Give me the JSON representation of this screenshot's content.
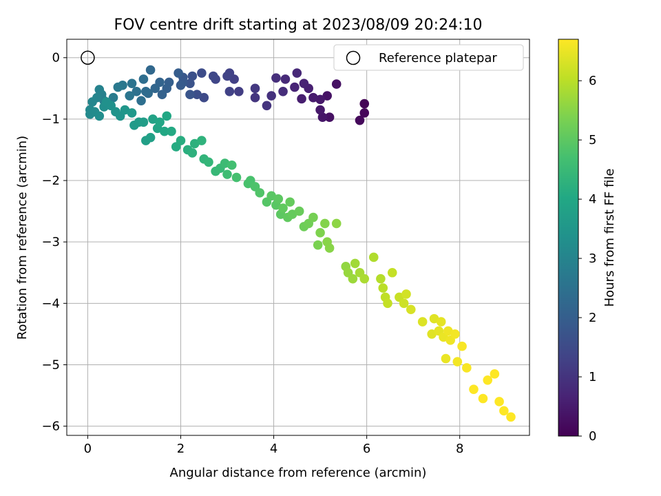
{
  "chart_data": {
    "type": "scatter",
    "title": "FOV centre drift starting at 2023/08/09 20:24:10",
    "xlabel": "Angular distance from reference (arcmin)",
    "ylabel": "Rotation from reference (arcmin)",
    "xlim": [
      -0.45,
      9.5
    ],
    "ylim": [
      -6.15,
      0.3
    ],
    "xticks": [
      "0",
      "2",
      "4",
      "6",
      "8"
    ],
    "yticks": [
      "0",
      "−1",
      "−2",
      "−3",
      "−4",
      "−5",
      "−6"
    ],
    "grid": true,
    "legend": {
      "placement": "upper right",
      "entries": [
        "Reference platepar"
      ]
    },
    "reference_point": {
      "x": 0.0,
      "y": 0.0
    },
    "colorbar": {
      "label": "Hours from first FF file",
      "range": [
        0,
        6.7
      ],
      "ticks": [
        "0",
        "1",
        "2",
        "3",
        "4",
        "5",
        "6"
      ],
      "colormap": "viridis"
    },
    "series": [
      {
        "points": [
          [
            5.95,
            -0.75,
            0.05
          ],
          [
            5.95,
            -0.9,
            0.1
          ],
          [
            5.85,
            -1.02,
            0.15
          ],
          [
            5.35,
            -0.43,
            0.3
          ],
          [
            5.2,
            -0.97,
            0.3
          ],
          [
            5.15,
            -0.62,
            0.35
          ],
          [
            5.05,
            -0.97,
            0.4
          ],
          [
            5.0,
            -0.85,
            0.45
          ],
          [
            5.0,
            -0.68,
            0.45
          ],
          [
            4.85,
            -0.65,
            0.5
          ],
          [
            4.6,
            -0.67,
            0.55
          ],
          [
            4.75,
            -0.5,
            0.6
          ],
          [
            4.65,
            -0.42,
            0.65
          ],
          [
            4.45,
            -0.48,
            0.7
          ],
          [
            4.5,
            -0.25,
            0.75
          ],
          [
            4.25,
            -0.35,
            0.8
          ],
          [
            4.2,
            -0.55,
            0.85
          ],
          [
            4.05,
            -0.33,
            0.9
          ],
          [
            3.95,
            -0.62,
            0.95
          ],
          [
            3.85,
            -0.78,
            1.0
          ],
          [
            3.6,
            -0.65,
            1.05
          ],
          [
            3.6,
            -0.5,
            1.1
          ],
          [
            3.25,
            -0.55,
            1.2
          ],
          [
            3.15,
            -0.35,
            1.25
          ],
          [
            3.05,
            -0.25,
            1.3
          ],
          [
            3.05,
            -0.55,
            1.3
          ],
          [
            3.0,
            -0.3,
            1.35
          ],
          [
            2.75,
            -0.35,
            1.4
          ],
          [
            2.7,
            -0.3,
            1.45
          ],
          [
            2.5,
            -0.65,
            1.5
          ],
          [
            2.45,
            -0.25,
            1.55
          ],
          [
            2.35,
            -0.6,
            1.6
          ],
          [
            2.25,
            -0.3,
            1.65
          ],
          [
            2.2,
            -0.42,
            1.7
          ],
          [
            2.2,
            -0.6,
            1.75
          ],
          [
            2.05,
            -0.32,
            1.8
          ],
          [
            2.05,
            -0.4,
            1.85
          ],
          [
            2.0,
            -0.45,
            1.9
          ],
          [
            1.95,
            -0.25,
            1.95
          ],
          [
            1.75,
            -0.4,
            2.0
          ],
          [
            1.7,
            -0.5,
            2.05
          ],
          [
            1.6,
            -0.6,
            2.1
          ],
          [
            1.55,
            -0.4,
            2.15
          ],
          [
            1.45,
            -0.5,
            2.2
          ],
          [
            1.35,
            -0.2,
            2.25
          ],
          [
            1.3,
            -0.58,
            2.3
          ],
          [
            1.25,
            -0.55,
            2.35
          ],
          [
            1.2,
            -0.35,
            2.4
          ],
          [
            1.15,
            -0.7,
            2.45
          ],
          [
            1.05,
            -0.55,
            2.5
          ],
          [
            0.95,
            -0.42,
            2.55
          ],
          [
            0.9,
            -0.62,
            2.6
          ],
          [
            0.75,
            -0.45,
            2.65
          ],
          [
            0.65,
            -0.48,
            2.7
          ],
          [
            0.55,
            -0.65,
            2.75
          ],
          [
            0.45,
            -0.75,
            2.8
          ],
          [
            0.35,
            -0.7,
            2.85
          ],
          [
            0.3,
            -0.6,
            2.9
          ],
          [
            0.25,
            -0.52,
            2.95
          ],
          [
            0.2,
            -0.65,
            3.0
          ],
          [
            0.1,
            -0.72,
            3.05
          ],
          [
            0.05,
            -0.85,
            3.1
          ],
          [
            0.05,
            -0.92,
            3.15
          ],
          [
            0.15,
            -0.88,
            3.2
          ],
          [
            0.25,
            -0.95,
            3.25
          ],
          [
            0.35,
            -0.8,
            3.3
          ],
          [
            0.4,
            -0.72,
            3.35
          ],
          [
            0.5,
            -0.78,
            3.35
          ],
          [
            0.6,
            -0.88,
            3.4
          ],
          [
            0.7,
            -0.95,
            3.45
          ],
          [
            0.8,
            -0.85,
            3.5
          ],
          [
            0.95,
            -0.9,
            3.55
          ],
          [
            1.0,
            -1.1,
            3.6
          ],
          [
            1.1,
            -1.05,
            3.65
          ],
          [
            1.2,
            -1.05,
            3.7
          ],
          [
            1.25,
            -1.35,
            3.75
          ],
          [
            1.35,
            -1.3,
            3.8
          ],
          [
            1.4,
            -1.0,
            3.85
          ],
          [
            1.5,
            -1.15,
            3.9
          ],
          [
            1.55,
            -1.05,
            3.95
          ],
          [
            1.65,
            -1.2,
            4.0
          ],
          [
            1.7,
            -0.95,
            4.0
          ],
          [
            1.8,
            -1.2,
            4.05
          ],
          [
            1.9,
            -1.45,
            4.1
          ],
          [
            2.0,
            -1.35,
            4.15
          ],
          [
            2.15,
            -1.5,
            4.2
          ],
          [
            2.25,
            -1.55,
            4.25
          ],
          [
            2.3,
            -1.4,
            4.25
          ],
          [
            2.45,
            -1.35,
            4.3
          ],
          [
            2.5,
            -1.65,
            4.35
          ],
          [
            2.6,
            -1.7,
            4.4
          ],
          [
            2.75,
            -1.85,
            4.45
          ],
          [
            2.85,
            -1.8,
            4.5
          ],
          [
            2.95,
            -1.72,
            4.55
          ],
          [
            3.0,
            -1.9,
            4.6
          ],
          [
            3.1,
            -1.75,
            4.65
          ],
          [
            3.2,
            -1.95,
            4.7
          ],
          [
            3.45,
            -2.05,
            4.75
          ],
          [
            3.5,
            -2.0,
            4.75
          ],
          [
            3.6,
            -2.1,
            4.8
          ],
          [
            3.7,
            -2.2,
            4.85
          ],
          [
            3.85,
            -2.35,
            4.9
          ],
          [
            3.95,
            -2.25,
            4.95
          ],
          [
            4.05,
            -2.4,
            4.95
          ],
          [
            4.1,
            -2.3,
            5.0
          ],
          [
            4.15,
            -2.55,
            5.0
          ],
          [
            4.2,
            -2.45,
            5.05
          ],
          [
            4.3,
            -2.6,
            5.05
          ],
          [
            4.35,
            -2.35,
            5.1
          ],
          [
            4.4,
            -2.55,
            5.1
          ],
          [
            4.55,
            -2.5,
            5.15
          ],
          [
            4.65,
            -2.75,
            5.2
          ],
          [
            4.75,
            -2.7,
            5.25
          ],
          [
            4.85,
            -2.6,
            5.3
          ],
          [
            4.95,
            -3.05,
            5.35
          ],
          [
            5.0,
            -2.85,
            5.4
          ],
          [
            5.1,
            -2.7,
            5.45
          ],
          [
            5.15,
            -3.0,
            5.5
          ],
          [
            5.2,
            -3.1,
            5.5
          ],
          [
            5.35,
            -2.7,
            5.55
          ],
          [
            5.55,
            -3.4,
            5.6
          ],
          [
            5.6,
            -3.5,
            5.65
          ],
          [
            5.7,
            -3.6,
            5.7
          ],
          [
            5.75,
            -3.35,
            5.75
          ],
          [
            5.85,
            -3.5,
            5.8
          ],
          [
            5.95,
            -3.6,
            5.85
          ],
          [
            6.15,
            -3.25,
            5.9
          ],
          [
            6.3,
            -3.6,
            5.95
          ],
          [
            6.35,
            -3.75,
            6.0
          ],
          [
            6.4,
            -3.9,
            6.05
          ],
          [
            6.45,
            -4.0,
            6.1
          ],
          [
            6.55,
            -3.5,
            6.1
          ],
          [
            6.7,
            -3.9,
            6.15
          ],
          [
            6.8,
            -4.0,
            6.2
          ],
          [
            6.85,
            -3.85,
            6.25
          ],
          [
            6.95,
            -4.1,
            6.3
          ],
          [
            7.2,
            -4.3,
            6.35
          ],
          [
            7.4,
            -4.5,
            6.4
          ],
          [
            7.45,
            -4.25,
            6.4
          ],
          [
            7.55,
            -4.45,
            6.45
          ],
          [
            7.6,
            -4.3,
            6.45
          ],
          [
            7.65,
            -4.55,
            6.5
          ],
          [
            7.7,
            -4.9,
            6.5
          ],
          [
            7.75,
            -4.45,
            6.55
          ],
          [
            7.8,
            -4.6,
            6.55
          ],
          [
            7.9,
            -4.5,
            6.6
          ],
          [
            7.95,
            -4.95,
            6.6
          ],
          [
            8.05,
            -4.7,
            6.65
          ],
          [
            8.15,
            -5.05,
            6.65
          ],
          [
            8.3,
            -5.4,
            6.7
          ],
          [
            8.5,
            -5.55,
            6.7
          ],
          [
            8.6,
            -5.25,
            6.7
          ],
          [
            8.75,
            -5.15,
            6.7
          ],
          [
            8.85,
            -5.6,
            6.7
          ],
          [
            8.95,
            -5.75,
            6.7
          ],
          [
            9.1,
            -5.85,
            6.7
          ]
        ]
      }
    ]
  }
}
